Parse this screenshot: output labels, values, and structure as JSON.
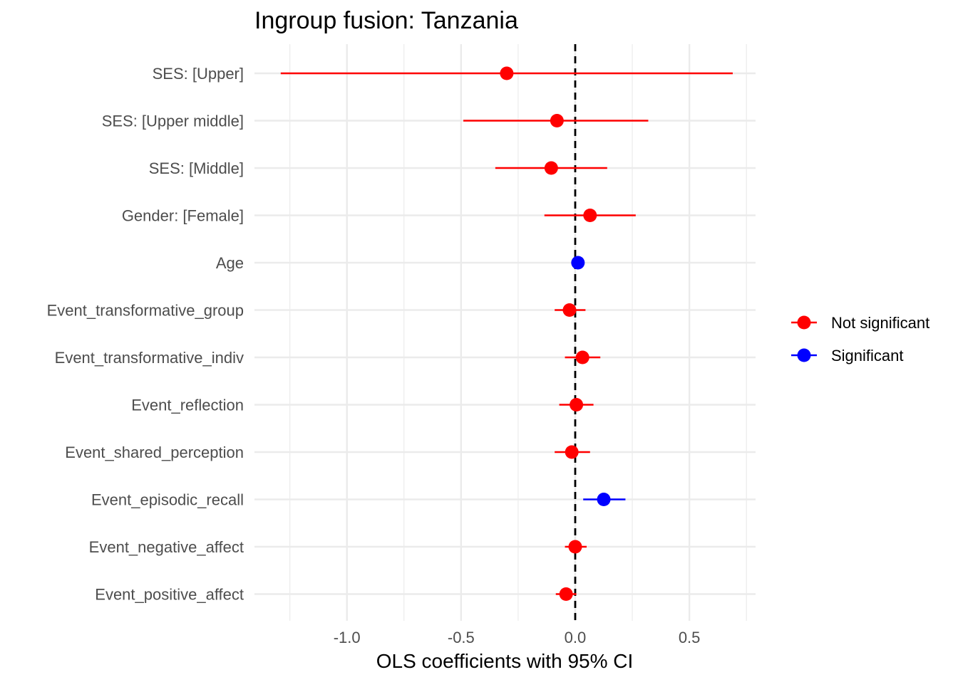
{
  "chart_data": {
    "type": "forest",
    "title": "Ingroup fusion: Tanzania",
    "xlabel": "OLS coefficients with 95% CI",
    "ylabel": "",
    "xlim": [
      -1.405,
      0.79
    ],
    "x_ticks": [
      -1.0,
      -0.5,
      0.0,
      0.5
    ],
    "x_tick_labels": [
      "-1.0",
      "-0.5",
      "0.0",
      "0.5"
    ],
    "reference_line": 0.0,
    "grid": true,
    "legend": {
      "position": "right",
      "entries": [
        {
          "label": "Not significant",
          "color": "#ff0000"
        },
        {
          "label": "Significant",
          "color": "#0000ff"
        }
      ]
    },
    "terms": [
      {
        "label": "SES:  [Upper]",
        "estimate": -0.3,
        "ci_low": -1.29,
        "ci_high": 0.69,
        "significant": false
      },
      {
        "label": "SES:  [Upper middle]",
        "estimate": -0.08,
        "ci_low": -0.49,
        "ci_high": 0.32,
        "significant": false
      },
      {
        "label": "SES:  [Middle]",
        "estimate": -0.105,
        "ci_low": -0.35,
        "ci_high": 0.14,
        "significant": false
      },
      {
        "label": "Gender:  [Female]",
        "estimate": 0.065,
        "ci_low": -0.135,
        "ci_high": 0.265,
        "significant": false
      },
      {
        "label": "Age",
        "estimate": 0.012,
        "ci_low": 0.005,
        "ci_high": 0.019,
        "significant": true
      },
      {
        "label": "Event_transformative_group",
        "estimate": -0.025,
        "ci_low": -0.09,
        "ci_high": 0.045,
        "significant": false
      },
      {
        "label": "Event_transformative_indiv",
        "estimate": 0.032,
        "ci_low": -0.045,
        "ci_high": 0.11,
        "significant": false
      },
      {
        "label": "Event_reflection",
        "estimate": 0.005,
        "ci_low": -0.07,
        "ci_high": 0.08,
        "significant": false
      },
      {
        "label": "Event_shared_perception",
        "estimate": -0.015,
        "ci_low": -0.09,
        "ci_high": 0.065,
        "significant": false
      },
      {
        "label": "Event_episodic_recall",
        "estimate": 0.125,
        "ci_low": 0.035,
        "ci_high": 0.22,
        "significant": true
      },
      {
        "label": "Event_negative_affect",
        "estimate": 0.0,
        "ci_low": -0.045,
        "ci_high": 0.05,
        "significant": false
      },
      {
        "label": "Event_positive_affect",
        "estimate": -0.04,
        "ci_low": -0.085,
        "ci_high": 0.005,
        "significant": false
      }
    ]
  }
}
